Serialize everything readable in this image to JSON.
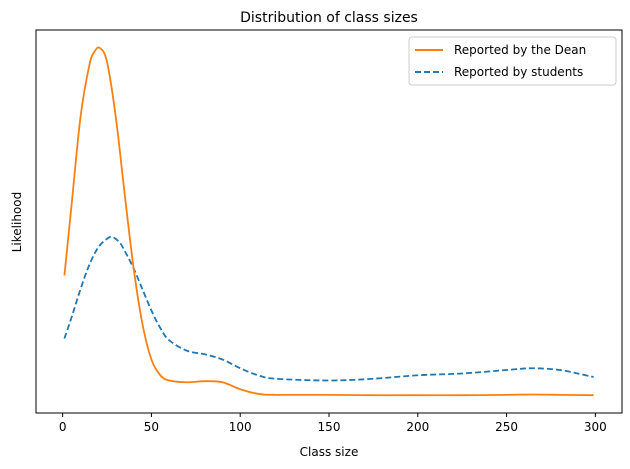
{
  "chart_data": {
    "type": "line",
    "title": "Distribution of class sizes",
    "xlabel": "Class size",
    "ylabel": "Likelihood",
    "xlim": [
      -15,
      315
    ],
    "ylim": [
      0,
      1
    ],
    "xticks": [
      0,
      50,
      100,
      150,
      200,
      250,
      300
    ],
    "y_ticks_shown": false,
    "legend_position": "top-right",
    "series": [
      {
        "name": "Reported by the Dean",
        "color": "#ff7f0e",
        "style": "solid",
        "x": [
          1,
          5,
          10,
          15,
          18,
          21,
          25,
          30,
          35,
          40,
          45,
          50,
          55,
          60,
          70,
          80,
          90,
          100,
          110,
          120,
          150,
          175,
          200,
          225,
          250,
          265,
          280,
          299
        ],
        "y": [
          0.35,
          0.55,
          0.8,
          0.95,
          0.99,
          1.0,
          0.96,
          0.8,
          0.58,
          0.37,
          0.21,
          0.11,
          0.065,
          0.05,
          0.045,
          0.048,
          0.045,
          0.025,
          0.012,
          0.009,
          0.009,
          0.008,
          0.008,
          0.008,
          0.009,
          0.01,
          0.009,
          0.008
        ]
      },
      {
        "name": "Reported by students",
        "color": "#1f77b4",
        "style": "dashed",
        "x": [
          1,
          5,
          10,
          15,
          20,
          25,
          28,
          32,
          35,
          40,
          45,
          50,
          55,
          60,
          70,
          80,
          90,
          100,
          110,
          120,
          150,
          175,
          200,
          225,
          250,
          265,
          280,
          290,
          299
        ],
        "y": [
          0.17,
          0.23,
          0.31,
          0.38,
          0.43,
          0.455,
          0.46,
          0.445,
          0.42,
          0.37,
          0.31,
          0.25,
          0.2,
          0.165,
          0.135,
          0.125,
          0.11,
          0.085,
          0.065,
          0.055,
          0.05,
          0.055,
          0.065,
          0.07,
          0.08,
          0.085,
          0.08,
          0.07,
          0.06
        ]
      }
    ]
  }
}
